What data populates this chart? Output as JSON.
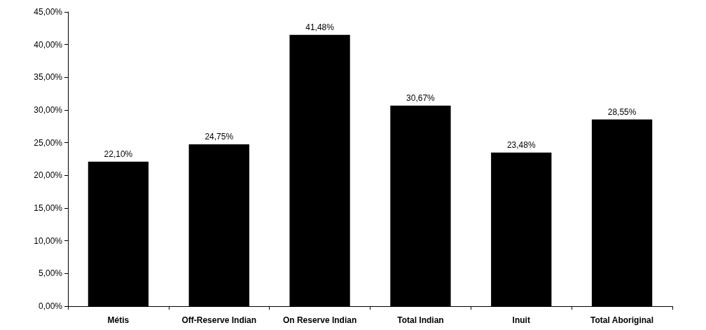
{
  "chart_data": {
    "type": "bar",
    "categories": [
      "Métis",
      "Off-Reserve Indian",
      "On Reserve Indian",
      "Total Indian",
      "Inuit",
      "Total Aboriginal"
    ],
    "values": [
      22.1,
      24.75,
      41.48,
      30.67,
      23.48,
      28.55
    ],
    "value_labels": [
      "22,10%",
      "24,75%",
      "41,48%",
      "30,67%",
      "23,48%",
      "28,55%"
    ],
    "color": "#000000",
    "ylim": [
      0,
      45
    ],
    "yticks": [
      {
        "value": 0,
        "label": "0,00%"
      },
      {
        "value": 5,
        "label": "5,00%"
      },
      {
        "value": 10,
        "label": "10,00%"
      },
      {
        "value": 15,
        "label": "15,00%"
      },
      {
        "value": 20,
        "label": "20,00%"
      },
      {
        "value": 25,
        "label": "25,00%"
      },
      {
        "value": 30,
        "label": "30,00%"
      },
      {
        "value": 35,
        "label": "35,00%"
      },
      {
        "value": 40,
        "label": "40,00%"
      },
      {
        "value": 45,
        "label": "45,00%"
      }
    ]
  }
}
